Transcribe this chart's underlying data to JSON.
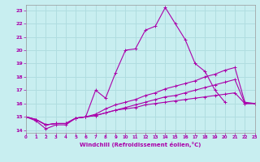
{
  "xlabel": "Windchill (Refroidissement éolien,°C)",
  "xlim": [
    0,
    23
  ],
  "ylim": [
    13.8,
    23.4
  ],
  "yticks": [
    14,
    15,
    16,
    17,
    18,
    19,
    20,
    21,
    22,
    23
  ],
  "xticks": [
    0,
    1,
    2,
    3,
    4,
    5,
    6,
    7,
    8,
    9,
    10,
    11,
    12,
    13,
    14,
    15,
    16,
    17,
    18,
    19,
    20,
    21,
    22,
    23
  ],
  "bg_color": "#c8eef0",
  "grid_color": "#b0dde0",
  "line_color": "#aa00aa",
  "lines": [
    {
      "x": [
        0,
        1,
        2,
        3,
        4,
        5,
        6,
        7,
        8,
        9,
        10,
        11,
        12,
        13,
        14,
        15,
        16,
        17,
        18,
        19,
        20
      ],
      "y": [
        15.0,
        14.7,
        14.1,
        14.4,
        14.4,
        14.9,
        15.0,
        17.0,
        16.4,
        18.3,
        20.0,
        20.1,
        21.5,
        21.8,
        23.2,
        22.0,
        20.8,
        19.0,
        18.4,
        17.0,
        16.1
      ]
    },
    {
      "x": [
        0,
        1,
        2,
        3,
        4,
        5,
        6,
        7,
        8,
        9,
        10,
        11,
        12,
        13,
        14,
        15,
        16,
        17,
        18,
        19,
        20,
        21,
        22,
        23
      ],
      "y": [
        15.0,
        14.8,
        14.4,
        14.5,
        14.5,
        14.9,
        15.0,
        15.2,
        15.6,
        15.9,
        16.1,
        16.3,
        16.6,
        16.8,
        17.1,
        17.3,
        17.5,
        17.7,
        18.0,
        18.2,
        18.5,
        18.7,
        16.1,
        16.0
      ]
    },
    {
      "x": [
        0,
        1,
        2,
        3,
        4,
        5,
        6,
        7,
        8,
        9,
        10,
        11,
        12,
        13,
        14,
        15,
        16,
        17,
        18,
        19,
        20,
        21,
        22,
        23
      ],
      "y": [
        15.0,
        14.8,
        14.4,
        14.5,
        14.5,
        14.9,
        15.0,
        15.1,
        15.3,
        15.5,
        15.7,
        15.9,
        16.1,
        16.3,
        16.5,
        16.6,
        16.8,
        17.0,
        17.2,
        17.4,
        17.6,
        17.8,
        16.0,
        16.0
      ]
    },
    {
      "x": [
        0,
        1,
        2,
        3,
        4,
        5,
        6,
        7,
        8,
        9,
        10,
        11,
        12,
        13,
        14,
        15,
        16,
        17,
        18,
        19,
        20,
        21,
        22,
        23
      ],
      "y": [
        15.0,
        14.8,
        14.4,
        14.5,
        14.5,
        14.9,
        15.0,
        15.1,
        15.3,
        15.5,
        15.6,
        15.7,
        15.9,
        16.0,
        16.1,
        16.2,
        16.3,
        16.4,
        16.5,
        16.6,
        16.7,
        16.8,
        16.0,
        16.0
      ]
    }
  ]
}
